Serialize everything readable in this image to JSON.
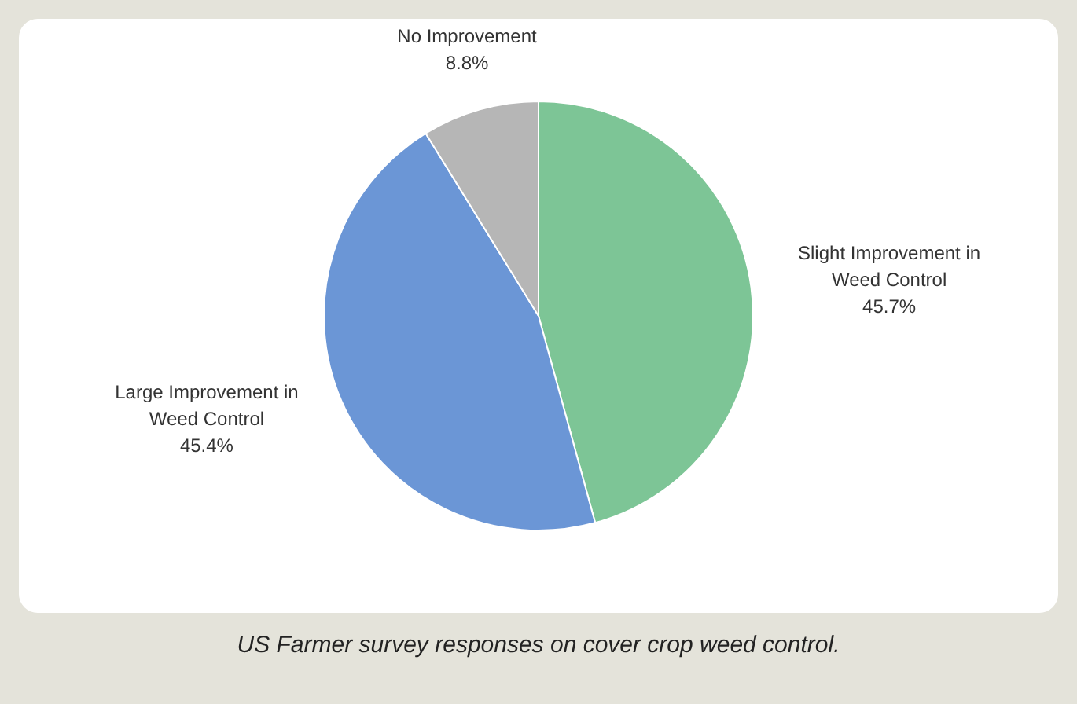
{
  "chart_data": {
    "type": "pie",
    "categories": [
      "Slight Improvement in Weed Control",
      "Large Improvement in Weed Control",
      "No Improvement"
    ],
    "values": [
      45.7,
      45.4,
      8.8
    ],
    "colors": [
      "#7dc596",
      "#6b96d6",
      "#b6b6b6"
    ],
    "value_labels": [
      "45.7%",
      "45.4%",
      "8.8%"
    ],
    "legend": false,
    "annotations": [
      "US Farmer survey responses on cover crop weed control."
    ]
  }
}
